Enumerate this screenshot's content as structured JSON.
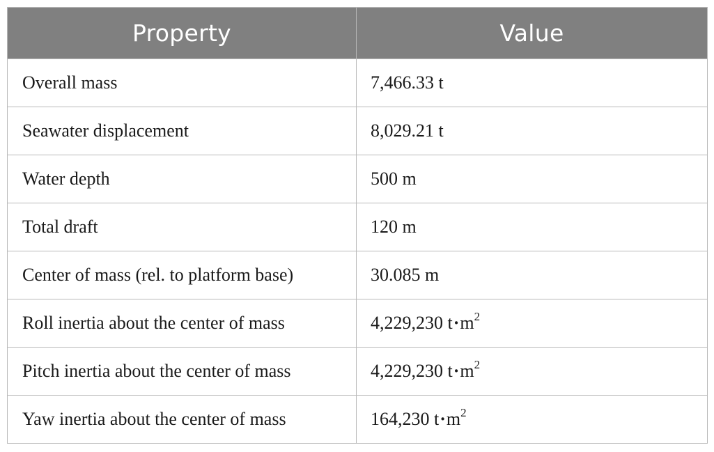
{
  "table": {
    "headers": [
      "Property",
      "Value"
    ],
    "rows": [
      {
        "property": "Overall mass",
        "value": "7,466.33 t",
        "unit_sup": ""
      },
      {
        "property": "Seawater displacement",
        "value": "8,029.21 t",
        "unit_sup": ""
      },
      {
        "property": "Water depth",
        "value": "500 m",
        "unit_sup": ""
      },
      {
        "property": "Total draft",
        "value": "120 m",
        "unit_sup": ""
      },
      {
        "property": "Center of mass (rel. to platform base)",
        "value": "30.085 m",
        "unit_sup": ""
      },
      {
        "property": "Roll inertia about the center of mass",
        "value": "4,229,230 t",
        "unit_dot": "·",
        "unit_tail": "m",
        "unit_sup": "2"
      },
      {
        "property": "Pitch inertia about the center of mass",
        "value": "4,229,230 t",
        "unit_dot": "·",
        "unit_tail": "m",
        "unit_sup": "2"
      },
      {
        "property": "Yaw inertia about the center of mass",
        "value": "164,230 t",
        "unit_dot": "·",
        "unit_tail": "m",
        "unit_sup": "2"
      }
    ]
  }
}
